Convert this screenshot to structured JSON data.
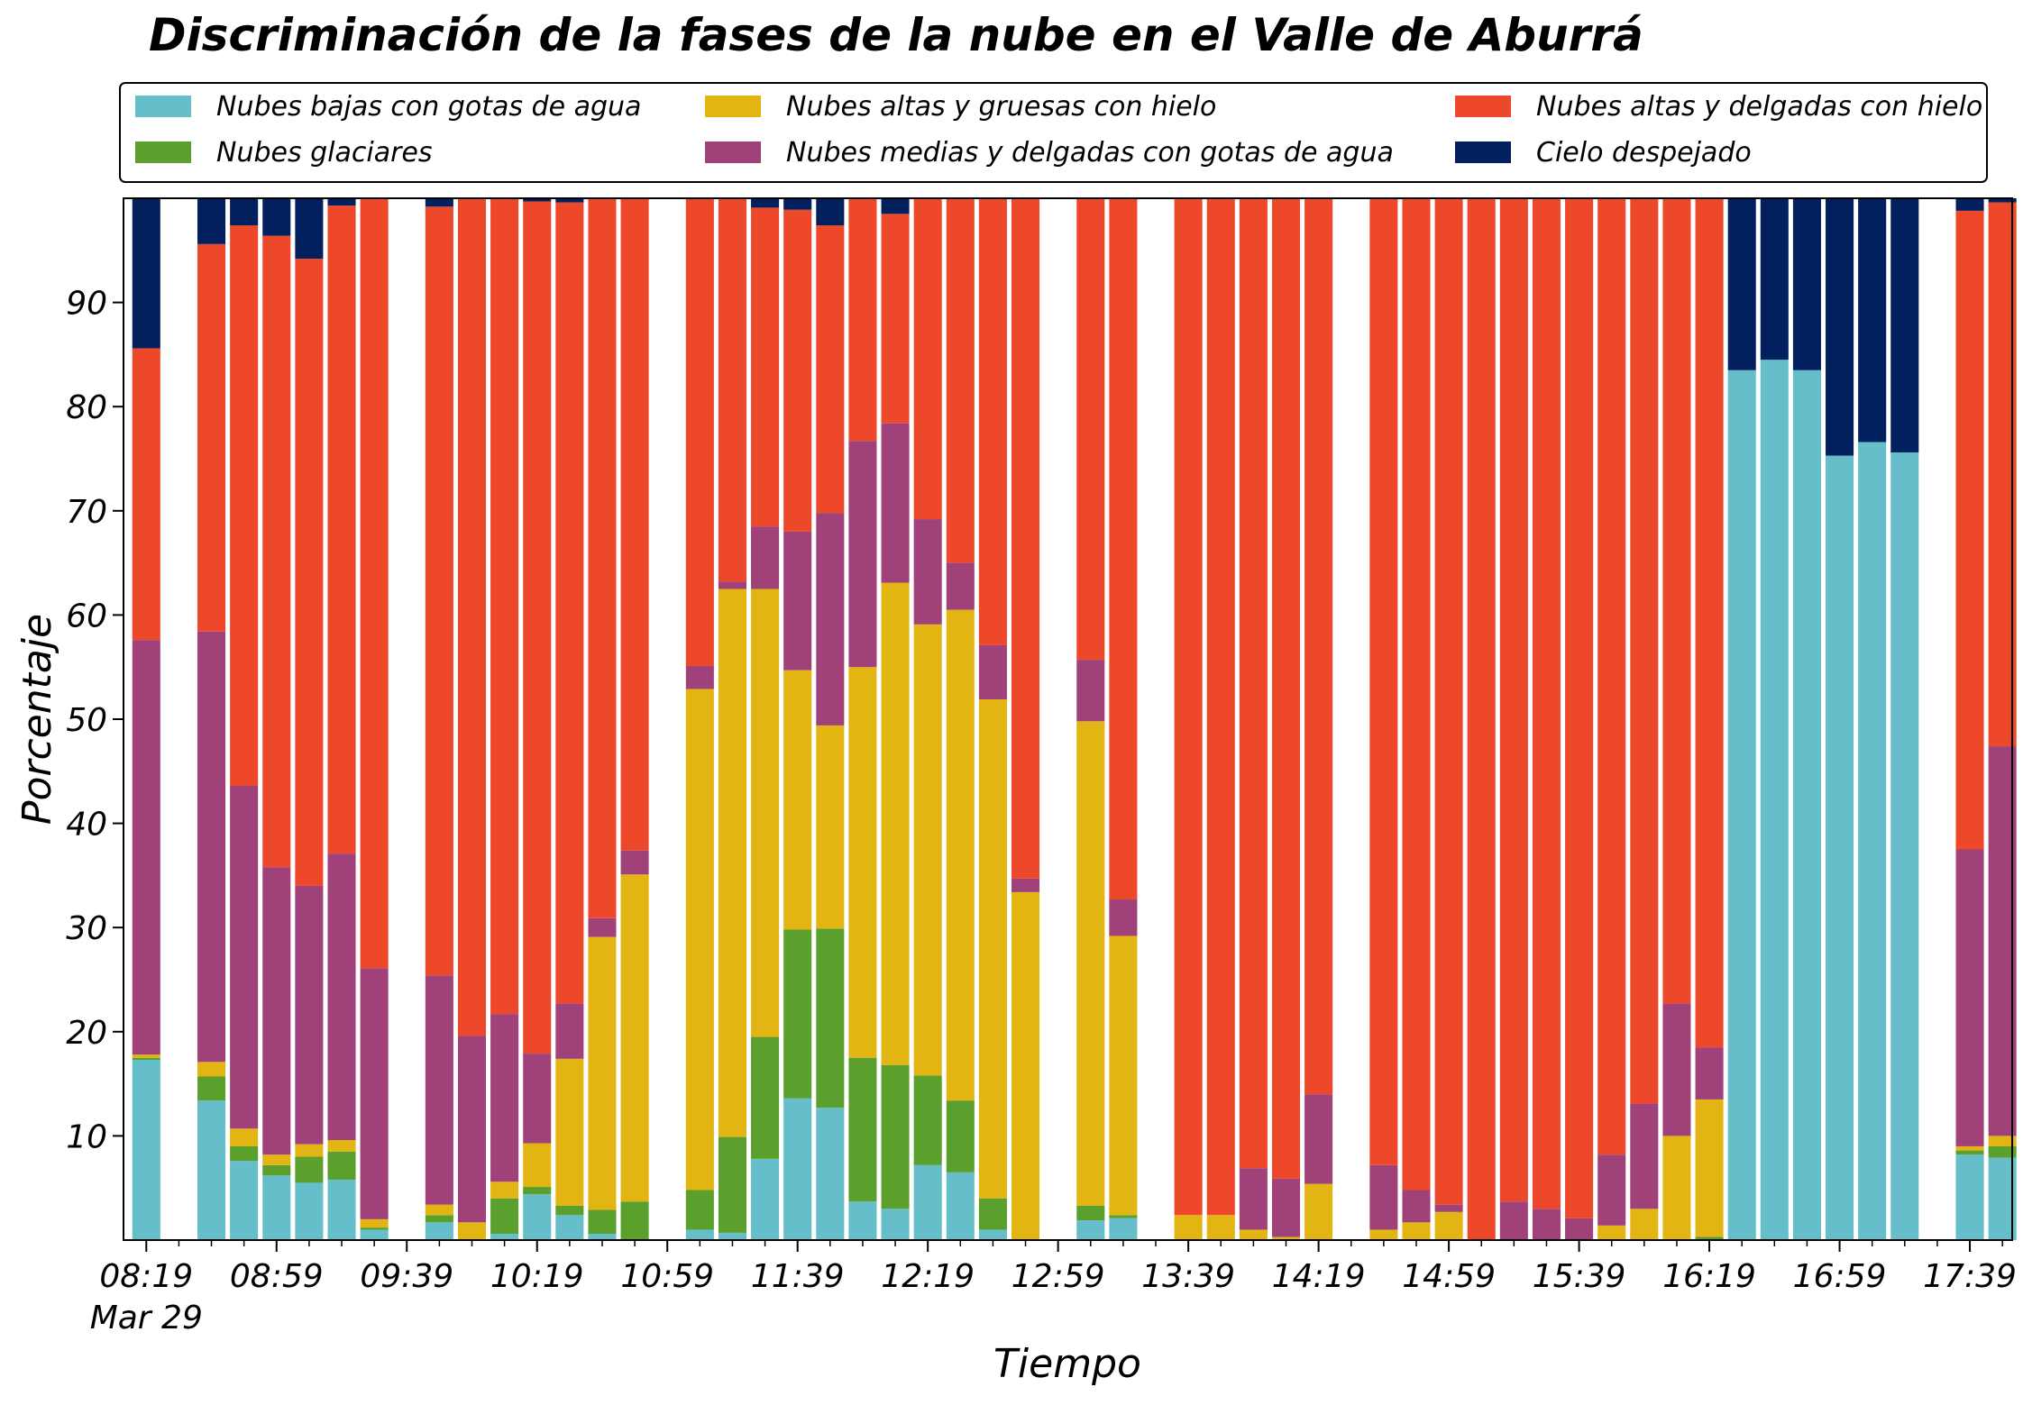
{
  "chart_data": {
    "type": "bar",
    "stacked": true,
    "title": "Discriminación de la fases de la nube en el Valle de Aburrá",
    "xlabel": "Tiempo",
    "ylabel": "Porcentaje",
    "ylim": [
      0,
      100
    ],
    "yticks": [
      10,
      20,
      30,
      40,
      50,
      60,
      70,
      80,
      90
    ],
    "xlim": [
      "08:12",
      "17:52"
    ],
    "bar_interval_minutes": 10,
    "x_tick_labels": [
      {
        "time": "08:19",
        "label": "08:19",
        "sublabel": "Mar 29"
      },
      {
        "time": "08:59",
        "label": "08:59"
      },
      {
        "time": "09:39",
        "label": "09:39"
      },
      {
        "time": "10:19",
        "label": "10:19"
      },
      {
        "time": "10:59",
        "label": "10:59"
      },
      {
        "time": "11:39",
        "label": "11:39"
      },
      {
        "time": "12:19",
        "label": "12:19"
      },
      {
        "time": "12:59",
        "label": "12:59"
      },
      {
        "time": "13:39",
        "label": "13:39"
      },
      {
        "time": "14:19",
        "label": "14:19"
      },
      {
        "time": "14:59",
        "label": "14:59"
      },
      {
        "time": "15:39",
        "label": "15:39"
      },
      {
        "time": "16:19",
        "label": "16:19"
      },
      {
        "time": "16:59",
        "label": "16:59"
      },
      {
        "time": "17:39",
        "label": "17:39"
      }
    ],
    "legend_position": "top",
    "legend_columns": 3,
    "series": [
      {
        "name": "Nubes bajas con gotas de agua",
        "color": "#65BEC9"
      },
      {
        "name": "Nubes glaciares",
        "color": "#5BA02C"
      },
      {
        "name": "Nubes altas y gruesas con hielo",
        "color": "#E3B513"
      },
      {
        "name": "Nubes medias y delgadas con gotas de agua",
        "color": "#A0417A"
      },
      {
        "name": "Nubes altas y delgadas con hielo",
        "color": "#EE482B"
      },
      {
        "name": "Cielo despejado",
        "color": "#03205E"
      }
    ],
    "x": [
      "08:19",
      "08:39",
      "08:49",
      "08:59",
      "09:09",
      "09:19",
      "09:29",
      "09:49",
      "09:59",
      "10:09",
      "10:19",
      "10:29",
      "10:39",
      "10:49",
      "11:09",
      "11:19",
      "11:29",
      "11:39",
      "11:49",
      "11:59",
      "12:09",
      "12:19",
      "12:29",
      "12:39",
      "12:49",
      "13:09",
      "13:19",
      "13:39",
      "13:49",
      "13:59",
      "14:09",
      "14:19",
      "14:39",
      "14:49",
      "14:59",
      "15:09",
      "15:19",
      "15:29",
      "15:39",
      "15:49",
      "15:59",
      "16:09",
      "16:19",
      "16:29",
      "16:39",
      "16:49",
      "16:59",
      "17:09",
      "17:19",
      "17:39",
      "17:49"
    ],
    "bars": [
      [
        17.3,
        0.2,
        0.3,
        39.8,
        28.0,
        14.4
      ],
      [
        13.4,
        2.3,
        1.4,
        41.3,
        37.2,
        4.4
      ],
      [
        7.6,
        1.4,
        1.7,
        32.9,
        53.8,
        2.6
      ],
      [
        6.2,
        1.0,
        1.0,
        27.6,
        60.6,
        3.6
      ],
      [
        5.5,
        2.5,
        1.2,
        24.8,
        60.2,
        5.8
      ],
      [
        5.8,
        2.7,
        1.1,
        27.5,
        62.2,
        0.7
      ],
      [
        1.0,
        0.2,
        0.8,
        24.1,
        73.9,
        0.0
      ],
      [
        1.7,
        0.7,
        1.0,
        22.0,
        73.8,
        0.8
      ],
      [
        0.0,
        0.0,
        1.7,
        17.9,
        80.4,
        0.0
      ],
      [
        0.6,
        3.4,
        1.6,
        16.1,
        78.3,
        0.0
      ],
      [
        4.4,
        0.7,
        4.2,
        8.6,
        81.8,
        0.3
      ],
      [
        2.4,
        0.9,
        14.1,
        5.3,
        76.9,
        0.4
      ],
      [
        0.6,
        2.3,
        26.2,
        1.8,
        69.1,
        0.0
      ],
      [
        0.0,
        3.7,
        31.4,
        2.3,
        62.6,
        0.0
      ],
      [
        1.0,
        3.8,
        48.1,
        2.2,
        44.9,
        0.0
      ],
      [
        0.7,
        9.2,
        52.6,
        0.7,
        36.8,
        0.0
      ],
      [
        7.8,
        11.7,
        43.0,
        6.0,
        30.6,
        0.9
      ],
      [
        13.6,
        16.2,
        24.9,
        13.3,
        30.9,
        1.1
      ],
      [
        12.7,
        17.2,
        19.5,
        20.4,
        27.6,
        2.6
      ],
      [
        3.7,
        13.8,
        37.5,
        21.7,
        23.3,
        0.0
      ],
      [
        3.0,
        13.8,
        46.3,
        15.3,
        20.1,
        1.5
      ],
      [
        7.2,
        8.6,
        43.3,
        10.1,
        30.8,
        0.0
      ],
      [
        6.5,
        6.9,
        47.1,
        4.5,
        35.0,
        0.0
      ],
      [
        1.0,
        3.0,
        47.9,
        5.2,
        42.9,
        0.0
      ],
      [
        0.0,
        0.0,
        33.4,
        1.3,
        65.3,
        0.0
      ],
      [
        1.9,
        1.4,
        46.5,
        5.9,
        44.3,
        0.0
      ],
      [
        2.1,
        0.3,
        26.8,
        3.5,
        67.3,
        0.0
      ],
      [
        0.0,
        0.0,
        2.4,
        0.0,
        97.6,
        0.0
      ],
      [
        0.0,
        0.0,
        2.4,
        0.0,
        97.6,
        0.0
      ],
      [
        0.0,
        0.0,
        1.0,
        5.9,
        93.1,
        0.0
      ],
      [
        0.0,
        0.0,
        0.3,
        5.6,
        94.1,
        0.0
      ],
      [
        0.0,
        0.0,
        5.4,
        8.6,
        86.0,
        0.0
      ],
      [
        0.0,
        0.0,
        1.0,
        6.2,
        92.8,
        0.0
      ],
      [
        0.0,
        0.0,
        1.7,
        3.1,
        95.2,
        0.0
      ],
      [
        0.0,
        0.0,
        2.7,
        0.7,
        96.6,
        0.0
      ],
      [
        0.0,
        0.0,
        0.0,
        0.0,
        100.0,
        0.0
      ],
      [
        0.0,
        0.0,
        0.0,
        3.7,
        96.3,
        0.0
      ],
      [
        0.0,
        0.0,
        0.0,
        3.0,
        97.0,
        0.0
      ],
      [
        0.0,
        0.0,
        0.0,
        2.1,
        97.9,
        0.0
      ],
      [
        0.0,
        0.0,
        1.4,
        6.8,
        91.8,
        0.0
      ],
      [
        0.0,
        0.0,
        3.0,
        10.1,
        86.9,
        0.0
      ],
      [
        0.0,
        0.0,
        10.0,
        12.7,
        77.3,
        0.0
      ],
      [
        0.0,
        0.3,
        13.2,
        5.0,
        81.5,
        0.0
      ],
      [
        83.5,
        0.0,
        0.0,
        0.0,
        0.0,
        16.5
      ],
      [
        84.5,
        0.0,
        0.0,
        0.0,
        0.0,
        15.5
      ],
      [
        83.5,
        0.0,
        0.0,
        0.0,
        0.0,
        16.5
      ],
      [
        75.3,
        0.0,
        0.0,
        0.0,
        0.0,
        24.7
      ],
      [
        76.6,
        0.0,
        0.0,
        0.0,
        0.0,
        23.4
      ],
      [
        75.6,
        0.0,
        0.0,
        0.0,
        0.0,
        24.4
      ],
      [
        8.2,
        0.4,
        0.4,
        28.5,
        61.3,
        1.2
      ],
      [
        7.9,
        1.1,
        1.0,
        37.4,
        52.2,
        0.4
      ]
    ]
  }
}
